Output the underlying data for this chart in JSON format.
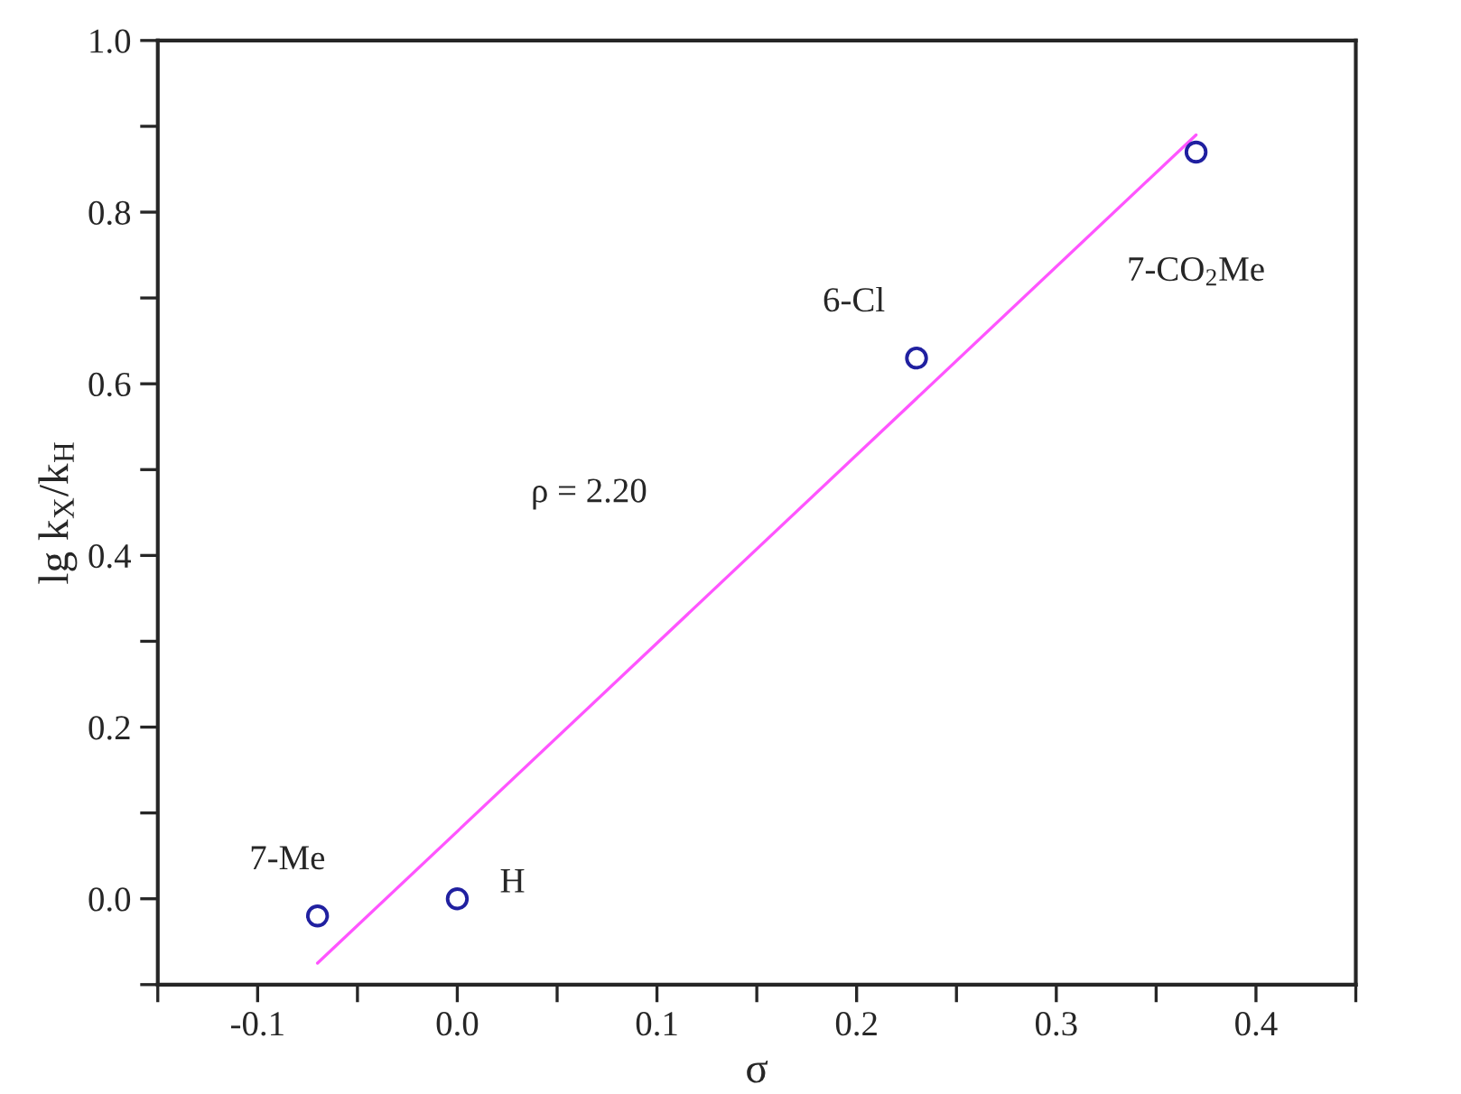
{
  "chart_data": {
    "type": "scatter",
    "xlabel": "σ",
    "ylabel": "lg k$_{X}$/k$_{H}$",
    "xlim": [
      -0.15,
      0.45
    ],
    "ylim": [
      -0.1,
      1.0
    ],
    "xticks": [
      {
        "value": -0.15,
        "label": null
      },
      -0.1,
      {
        "value": -0.05,
        "label": null
      },
      {
        "value": 0.0,
        "label": "0.0"
      },
      {
        "value": 0.05,
        "label": null
      },
      0.1,
      {
        "value": 0.15,
        "label": null
      },
      0.2,
      {
        "value": 0.25,
        "label": null
      },
      0.3,
      {
        "value": 0.35,
        "label": null
      },
      0.4,
      {
        "value": 0.45,
        "label": null
      }
    ],
    "yticks": [
      {
        "value": -0.1,
        "label": null
      },
      {
        "value": 0.0,
        "label": "0.0"
      },
      {
        "value": 0.1,
        "label": null
      },
      0.2,
      {
        "value": 0.3,
        "label": null
      },
      0.4,
      {
        "value": 0.5,
        "label": null
      },
      0.6,
      {
        "value": 0.7,
        "label": null
      },
      0.8,
      {
        "value": 0.9,
        "label": null
      },
      {
        "value": 1.0,
        "label": "1.0"
      }
    ],
    "grid": false,
    "legend": false,
    "marker": "circle",
    "series": [
      {
        "color": "#2020a0",
        "x": [
          -0.07,
          0.0,
          0.23,
          0.37
        ],
        "values": [
          -0.02,
          0.0,
          0.63,
          0.87
        ]
      },
      {
        "type": "line",
        "color": "#ff55ff",
        "x": [
          -0.07,
          0.37
        ],
        "values": [
          -0.075,
          0.89
        ],
        "line_style": "solid",
        "marker": "none"
      }
    ],
    "annotations": [
      {
        "text": "7-Me",
        "x": -0.07,
        "y": -0.02
      },
      {
        "text": "H",
        "x": 0.0,
        "y": 0.0
      },
      {
        "text": "6-Cl",
        "x": 0.23,
        "y": 0.63
      },
      {
        "text": "7-CO$_{2}$Me",
        "x": 0.37,
        "y": 0.87
      },
      "ρ = 2.20"
    ]
  }
}
